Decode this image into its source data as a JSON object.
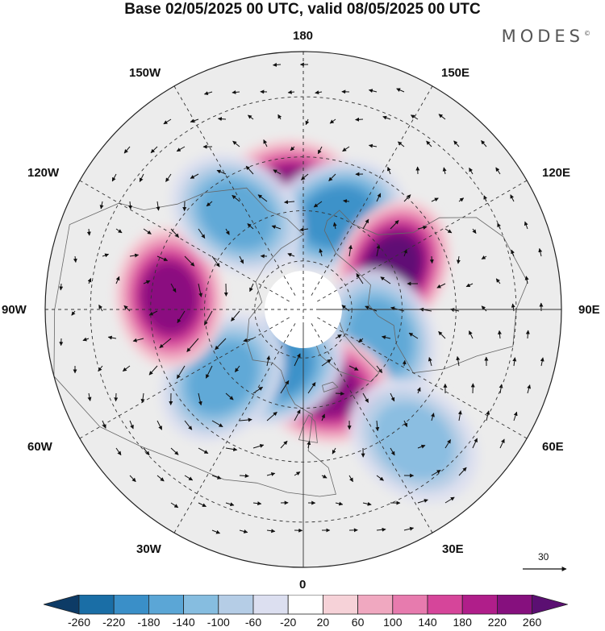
{
  "header": {
    "title": "Base 02/05/2025 00 UTC, valid 08/05/2025 00 UTC",
    "brand": "MODES",
    "brand_mark": "©"
  },
  "map": {
    "projection": "north-polar-stereographic",
    "longitude_labels": {
      "top": "180",
      "top_left": "150W",
      "top_right": "150E",
      "upper_left": "120W",
      "upper_right": "120E",
      "left": "90W",
      "right": "90E",
      "lower_left": "60W",
      "lower_right": "60E",
      "bottom_left": "30W",
      "bottom_right": "30E",
      "bottom": "0"
    },
    "anomaly_centers": [
      {
        "name": "pos-north-pacific",
        "lon": 175,
        "lat": 55,
        "value": 240
      },
      {
        "name": "neg-alaska",
        "lon": -160,
        "lat": 60,
        "value": -200
      },
      {
        "name": "pos-canada",
        "lon": -115,
        "lat": 60,
        "value": 260
      },
      {
        "name": "neg-greenland",
        "lon": -70,
        "lat": 65,
        "value": -170
      },
      {
        "name": "pos-iceland",
        "lon": -15,
        "lat": 65,
        "value": 220
      },
      {
        "name": "neg-scandinavia",
        "lon": 25,
        "lat": 70,
        "value": -180
      },
      {
        "name": "neg-baltic",
        "lon": 50,
        "lat": 58,
        "value": -140
      },
      {
        "name": "pos-siberia",
        "lon": 95,
        "lat": 50,
        "value": 220
      },
      {
        "name": "neg-east-siberia",
        "lon": 145,
        "lat": 55,
        "value": -160
      },
      {
        "name": "neg-atlantic",
        "lon": -40,
        "lat": 40,
        "value": -110
      }
    ],
    "vector_reference": "30",
    "colors": {
      "pole_blank": "#ffffff",
      "grid": "#333333",
      "land_outline": "#666666"
    }
  },
  "colorbar": {
    "ticks": [
      "-260",
      "-220",
      "-180",
      "-140",
      "-100",
      "-60",
      "-20",
      "20",
      "60",
      "100",
      "140",
      "180",
      "220",
      "260"
    ],
    "colors": [
      "#0d3b66",
      "#1a6ea6",
      "#3a8fc8",
      "#5ba6d6",
      "#86bde0",
      "#b5cde6",
      "#dcdff0",
      "#ffffff",
      "#f6d2d8",
      "#f0a8c0",
      "#e77bae",
      "#d6459a",
      "#b01e8a",
      "#86107e",
      "#5b0f72"
    ]
  }
}
